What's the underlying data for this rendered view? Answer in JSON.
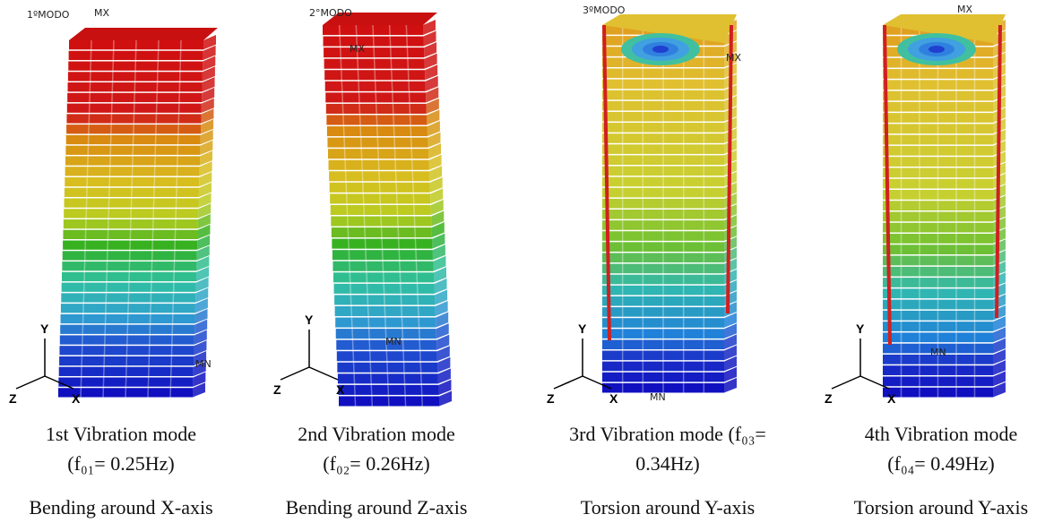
{
  "panels": [
    {
      "mode_label": "1ºMODO",
      "max_label": "MX",
      "min_label": "MN",
      "axes": {
        "y": "Y",
        "z": "Z",
        "x": "X"
      },
      "caption": [
        "1st Vibration mode",
        "(f₀₁= 0.25Hz)"
      ],
      "description": "Bending around X-axis"
    },
    {
      "mode_label": "2°MODO",
      "max_label": "MX",
      "min_label": "MN",
      "axes": {
        "y": "Y",
        "z": "Z",
        "x": "X"
      },
      "caption": [
        "2nd Vibration mode",
        "(f₀₂= 0.26Hz)"
      ],
      "description": "Bending around Z-axis"
    },
    {
      "mode_label": "3ºMODO",
      "max_label": "MX",
      "min_label": "MN",
      "axes": {
        "y": "Y",
        "z": "Z",
        "x": "X"
      },
      "caption": [
        "3rd Vibration mode (f₀₃=",
        "0.34Hz)"
      ],
      "description": "Torsion around Y-axis"
    },
    {
      "max_label": "MX",
      "min_label": "MN",
      "axes": {
        "y": "Y",
        "z": "Z",
        "x": "X"
      },
      "caption": [
        "4th Vibration mode",
        "(f₀₄= 0.49Hz)"
      ],
      "description": "Torsion around Y-axis"
    }
  ]
}
